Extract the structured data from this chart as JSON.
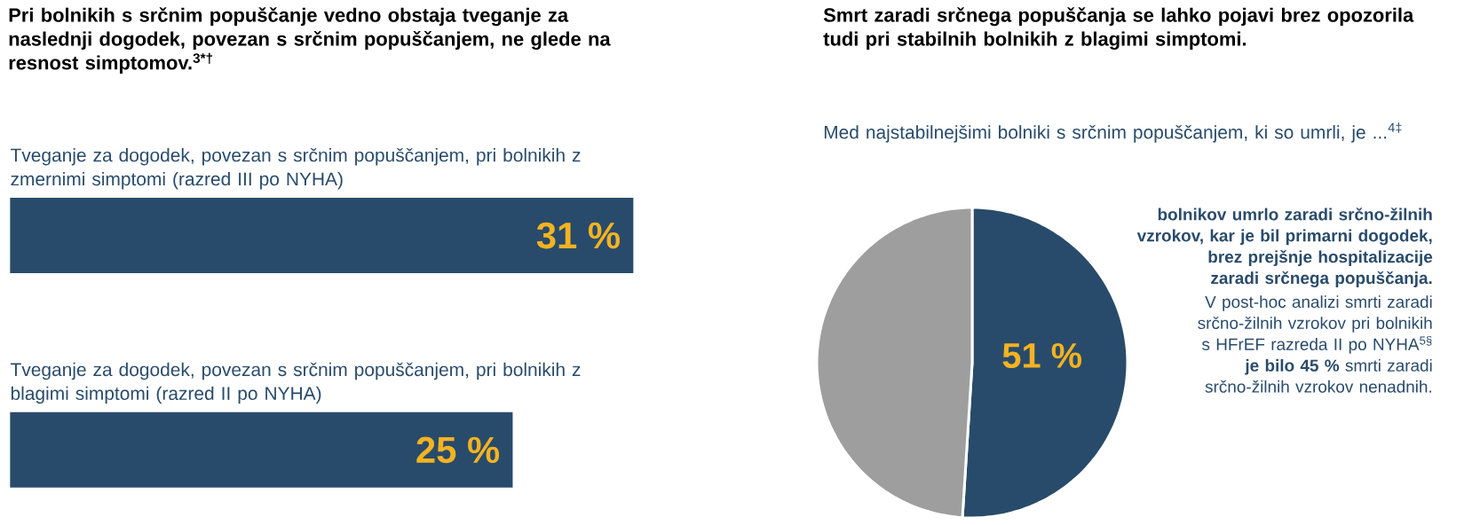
{
  "chart_data": [
    {
      "type": "bar",
      "orientation": "horizontal",
      "title": "Pri bolnikih s srčnim popuščanje vedno obstaja tveganje za naslednji dogodek, povezan s srčnim popuščanjem, ne glede na resnost simptomov.$^{3*†}$",
      "categories": [
        "Tveganje za dogodek, povezan s srčnim popuščanjem, pri bolnikih z zmernimi simptomi (razred III po NYHA)",
        "Tveganje za dogodek, povezan s srčnim popuščanjem, pri bolnikih z blagimi simptomi (razred II po NYHA)"
      ],
      "values": [
        31,
        25
      ],
      "color": "#294b6b",
      "xlim": [
        0,
        31
      ],
      "value_labels": [
        "31 %",
        "25 %"
      ]
    },
    {
      "type": "pie",
      "title": "Smrt zaradi srčnega popuščanja se lahko pojavi brez opozorila tudi pri stabilnih bolnikih z blagimi simptomi.",
      "subtitle": "Med najstabilnejšimi bolniki s srčnim popuščanjem, ki so umrli, je ...$^{4‡}$",
      "categories": [
        null,
        null
      ],
      "values": [
        51,
        49
      ],
      "colors": [
        "#294b6b",
        "#9e9e9e"
      ],
      "value_labels": [
        "51 %",
        null
      ],
      "annotations": [
        "**bolnikov umrlo zaradi srčno-žilnih vzrokov, kar je bil primarni dogodek, brez prejšnje hospitalizacije zaradi srčnega popuščanja.**",
        "V post-hoc analizi smrti zaradi srčno-žilnih vzrokov pri bolnikih s HFrEF razreda II po NYHA$^{5§}$ **je bilo 45 %** smrti zaradi srčno-žilnih vzrokov nenadnih."
      ]
    }
  ]
}
